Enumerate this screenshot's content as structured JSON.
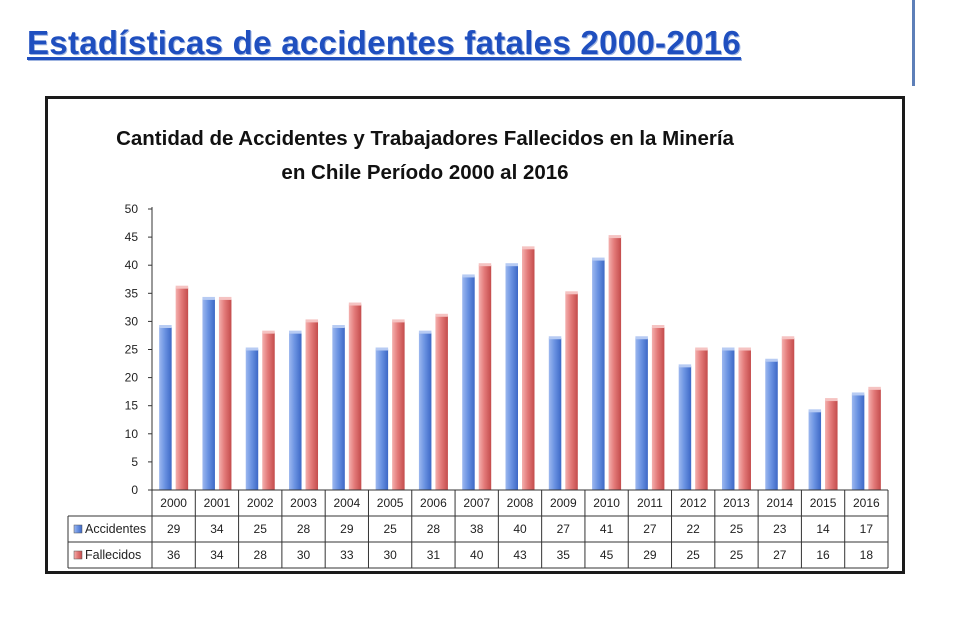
{
  "slide": {
    "title": "Estadísticas de accidentes fatales 2000-2016"
  },
  "colors": {
    "title": "#1f4fbf",
    "accidentes": "#5b85dc",
    "fallecidos": "#e07070"
  },
  "chart_data": {
    "type": "bar",
    "title_lines": [
      "Cantidad de Accidentes y Trabajadores Fallecidos en la Minería",
      "en Chile Período 2000 al 2016"
    ],
    "categories": [
      "2000",
      "2001",
      "2002",
      "2003",
      "2004",
      "2005",
      "2006",
      "2007",
      "2008",
      "2009",
      "2010",
      "2011",
      "2012",
      "2013",
      "2014",
      "2015",
      "2016"
    ],
    "series": [
      {
        "name": "Accidentes",
        "values": [
          29,
          34,
          25,
          28,
          29,
          25,
          28,
          38,
          40,
          27,
          41,
          27,
          22,
          25,
          23,
          14,
          17
        ]
      },
      {
        "name": "Fallecidos",
        "values": [
          36,
          34,
          28,
          30,
          33,
          30,
          31,
          40,
          43,
          35,
          45,
          29,
          25,
          25,
          27,
          16,
          18
        ]
      }
    ],
    "yticks": [
      "0",
      "5",
      "10",
      "15",
      "20",
      "25",
      "30",
      "35",
      "40",
      "45",
      "50"
    ],
    "ylim": [
      0,
      50
    ],
    "grid": false,
    "legend": "data-table"
  }
}
